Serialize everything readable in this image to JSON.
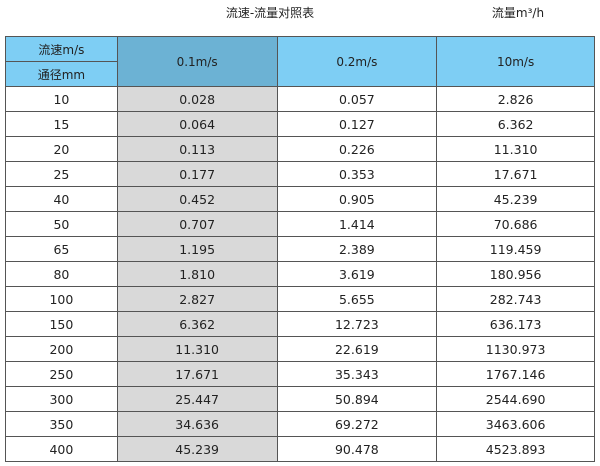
{
  "title": "流速-流量对照表",
  "unit": "流量m³/h",
  "header": {
    "velocity_label": "流速m/s",
    "diameter_label": "通径mm",
    "columns": [
      "0.1m/s",
      "0.2m/s",
      "10m/s"
    ]
  },
  "colors": {
    "header_bg": "#7ecef4",
    "selected_header_bg": "#6cb2d4",
    "selected_column_bg": "#d9d9d9"
  },
  "rows": [
    [
      "10",
      "0.028",
      "0.057",
      "2.826"
    ],
    [
      "15",
      "0.064",
      "0.127",
      "6.362"
    ],
    [
      "20",
      "0.113",
      "0.226",
      "11.310"
    ],
    [
      "25",
      "0.177",
      "0.353",
      "17.671"
    ],
    [
      "40",
      "0.452",
      "0.905",
      "45.239"
    ],
    [
      "50",
      "0.707",
      "1.414",
      "70.686"
    ],
    [
      "65",
      "1.195",
      "2.389",
      "119.459"
    ],
    [
      "80",
      "1.810",
      "3.619",
      "180.956"
    ],
    [
      "100",
      "2.827",
      "5.655",
      "282.743"
    ],
    [
      "150",
      "6.362",
      "12.723",
      "636.173"
    ],
    [
      "200",
      "11.310",
      "22.619",
      "1130.973"
    ],
    [
      "250",
      "17.671",
      "35.343",
      "1767.146"
    ],
    [
      "300",
      "25.447",
      "50.894",
      "2544.690"
    ],
    [
      "350",
      "34.636",
      "69.272",
      "3463.606"
    ],
    [
      "400",
      "45.239",
      "90.478",
      "4523.893"
    ]
  ]
}
